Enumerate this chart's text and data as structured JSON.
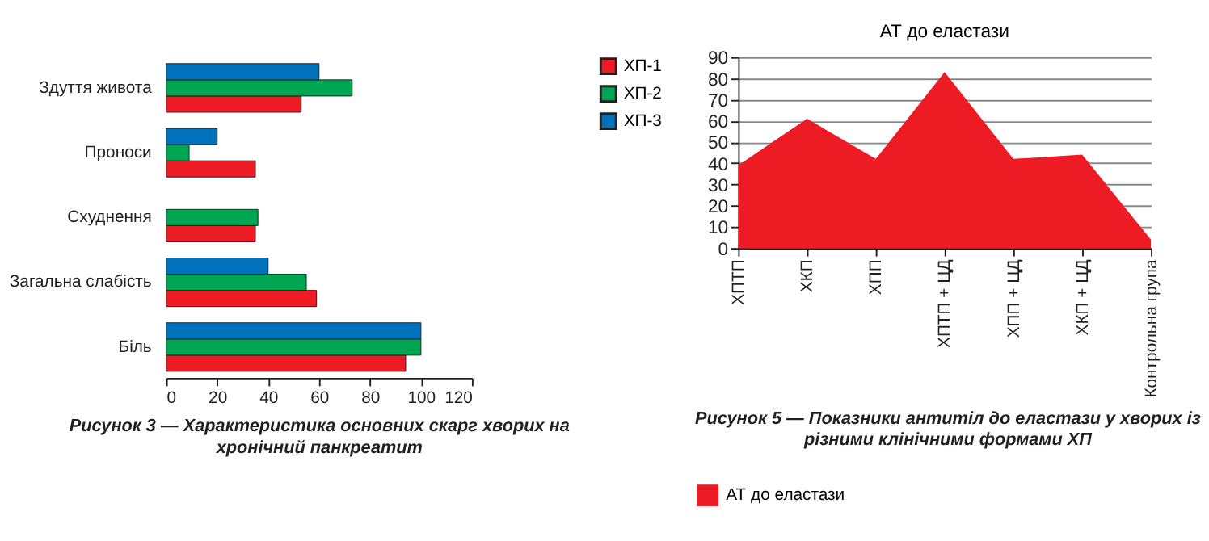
{
  "chart_data": [
    {
      "type": "bar",
      "orientation": "horizontal",
      "categories": [
        "Здуття живота",
        "Проноси",
        "Схуднення",
        "Загальна слабість",
        "Біль"
      ],
      "series": [
        {
          "name": "ХП-1",
          "color": "#ed1c24",
          "values": [
            53,
            35,
            35,
            59,
            94
          ]
        },
        {
          "name": "ХП-2",
          "color": "#00a651",
          "values": [
            73,
            9,
            36,
            55,
            100
          ]
        },
        {
          "name": "ХП-3",
          "color": "#0072bc",
          "values": [
            60,
            20,
            null,
            40,
            100
          ]
        }
      ],
      "xlim": [
        0,
        120
      ],
      "xticks": [
        0,
        20,
        40,
        60,
        80,
        100,
        120
      ],
      "grid": false,
      "legend": "right",
      "annotations": [
        "Рисунок 3 — Характеристика основних скарг хворих на хронічний панкреатит"
      ]
    },
    {
      "type": "area",
      "title": "АТ до еластази",
      "categories": [
        "ХПТП",
        "ХКП",
        "ХПП",
        "ХПТП + ЦД",
        "ХПП + ЦД",
        "ХКП + ЦД",
        "Контрольна група"
      ],
      "series": [
        {
          "name": "АТ до еластази",
          "color": "#ed1c24",
          "values": [
            39,
            61,
            42,
            83,
            42,
            44,
            4
          ]
        }
      ],
      "ylim": [
        0,
        90
      ],
      "yticks": [
        0,
        10,
        20,
        30,
        40,
        50,
        60,
        70,
        80,
        90
      ],
      "grid": "y",
      "legend": "bottom",
      "annotations": [
        "Рисунок 5 — Показники антитіл до еластази у хворих із різними клінічними формами ХП"
      ]
    }
  ]
}
